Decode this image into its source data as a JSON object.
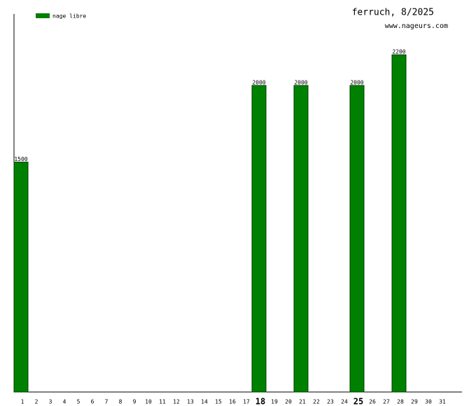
{
  "chart_data": {
    "type": "bar",
    "title": "ferruch, 8/2025",
    "subtitle": "www.nageurs.com",
    "categories": [
      "1",
      "2",
      "3",
      "4",
      "5",
      "6",
      "7",
      "8",
      "9",
      "10",
      "11",
      "12",
      "13",
      "14",
      "15",
      "16",
      "17",
      "18",
      "19",
      "20",
      "21",
      "22",
      "23",
      "24",
      "25",
      "26",
      "27",
      "28",
      "29",
      "30",
      "31"
    ],
    "series": [
      {
        "name": "nage libre",
        "color": "#008000",
        "values": [
          1500,
          null,
          null,
          null,
          null,
          null,
          null,
          null,
          null,
          null,
          null,
          null,
          null,
          null,
          null,
          null,
          null,
          2000,
          null,
          null,
          2000,
          null,
          null,
          null,
          2000,
          null,
          null,
          2200,
          null,
          null,
          null
        ]
      }
    ],
    "bold_categories": [
      "18",
      "25"
    ],
    "ylim": [
      0,
      2466
    ]
  }
}
